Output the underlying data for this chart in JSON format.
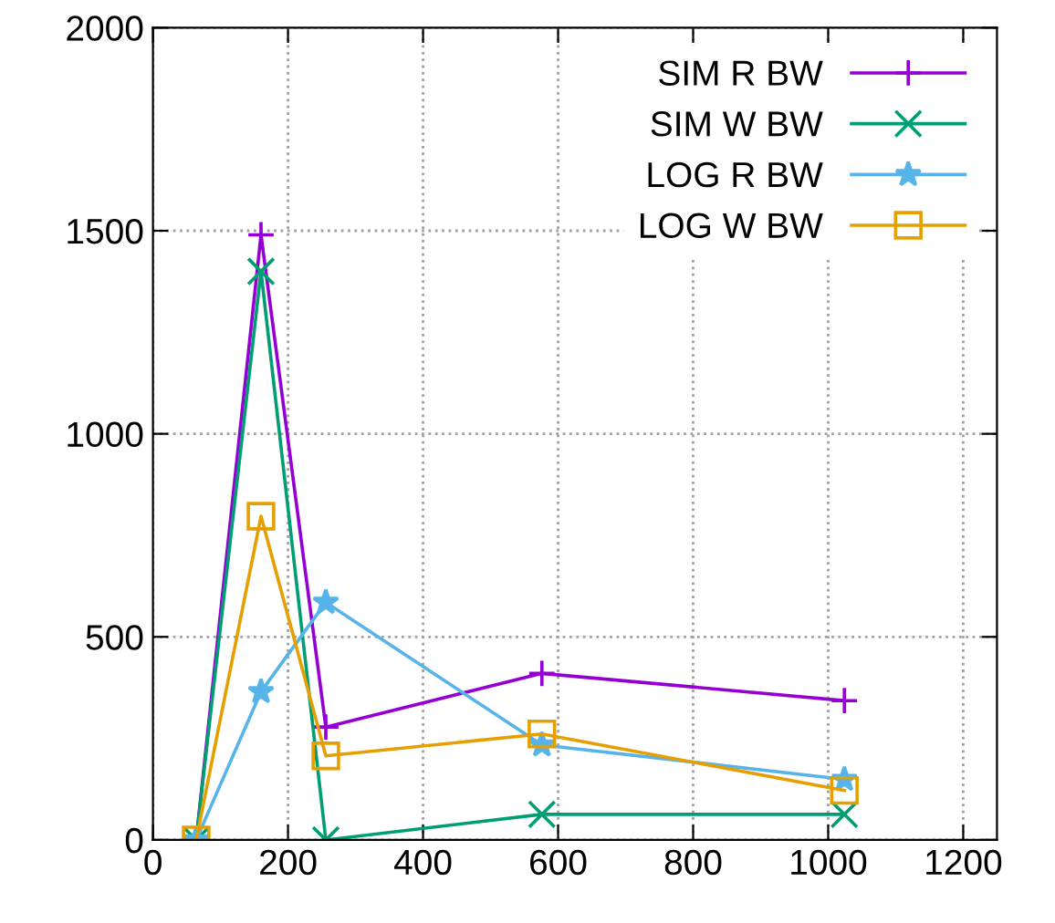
{
  "chart_data": {
    "type": "line",
    "x": [
      64,
      160,
      256,
      576,
      1024
    ],
    "series": [
      {
        "name": "SIM R BW",
        "color": "#9400d3",
        "marker": "plus",
        "values": [
          0,
          1490,
          278,
          410,
          343
        ]
      },
      {
        "name": "SIM W BW",
        "color": "#009e73",
        "marker": "cross",
        "values": [
          0,
          1400,
          0,
          63,
          63
        ]
      },
      {
        "name": "LOG R BW",
        "color": "#56b4e9",
        "marker": "star",
        "values": [
          0,
          365,
          585,
          234,
          149
        ]
      },
      {
        "name": "LOG W BW",
        "color": "#e69f00",
        "marker": "square",
        "values": [
          0,
          797,
          207,
          261,
          122
        ]
      }
    ],
    "xlim": [
      0,
      1250
    ],
    "xticks": [
      0,
      200,
      400,
      600,
      800,
      1000,
      1200
    ],
    "ylim": [
      0,
      2000
    ],
    "yticks": [
      0,
      500,
      1000,
      1500,
      2000
    ],
    "grid": true,
    "legend": "top right",
    "line_style": "solid"
  }
}
